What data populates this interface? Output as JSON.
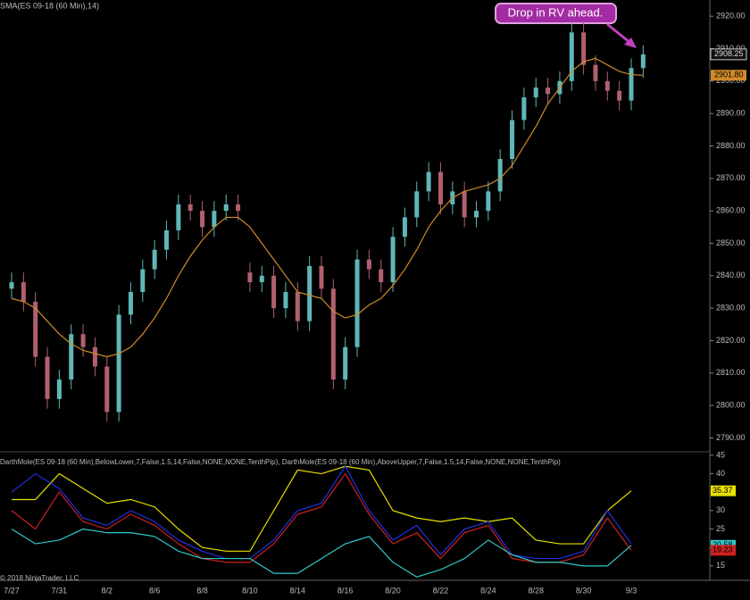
{
  "chart_data": [
    {
      "type": "candlestick",
      "title": "SMA(ES 09-18 (60 Min),14)",
      "annotation": "Drop in RV ahead.",
      "categories": [
        "7/27",
        "7/31",
        "8/2",
        "8/6",
        "8/8",
        "8/10",
        "8/14",
        "8/16",
        "8/20",
        "8/22",
        "8/24",
        "8/28",
        "8/30",
        "9/3"
      ],
      "up_color": "#5fb7b7",
      "down_color": "#b0606e",
      "sma_color": "#d08a2a",
      "ylim": [
        2786,
        2925
      ],
      "yticks": [
        {
          "value": 2790,
          "label": "2790.00"
        },
        {
          "value": 2800,
          "label": "2800.00"
        },
        {
          "value": 2810,
          "label": "2810.00"
        },
        {
          "value": 2820,
          "label": "2820.00"
        },
        {
          "value": 2830,
          "label": "2830.00"
        },
        {
          "value": 2840,
          "label": "2840.00"
        },
        {
          "value": 2850,
          "label": "2850.00"
        },
        {
          "value": 2860,
          "label": "2860.00"
        },
        {
          "value": 2870,
          "label": "2870.00"
        },
        {
          "value": 2880,
          "label": "2880.00"
        },
        {
          "value": 2890,
          "label": "2890.00"
        },
        {
          "value": 2900,
          "label": "2900.00"
        },
        {
          "value": 2910,
          "label": "2910.00"
        },
        {
          "value": 2920,
          "label": "2920.00"
        }
      ],
      "open": [
        2836,
        2838,
        2832,
        2815,
        2802,
        2808,
        2822,
        2818,
        2812,
        2798,
        2828,
        2835,
        2842,
        2848,
        2854,
        2862,
        2860,
        2855,
        2860,
        2862,
        2841,
        2838,
        2840,
        2830,
        2835,
        2826,
        2843,
        2836,
        2808,
        2818,
        2845,
        2842,
        2838,
        2852,
        2858,
        2866,
        2872,
        2862,
        2866,
        2858,
        2860,
        2866,
        2876,
        2888,
        2895,
        2898,
        2896,
        2900,
        2915,
        2905,
        2900,
        2897,
        2894,
        2904
      ],
      "high": [
        2841,
        2841,
        2835,
        2818,
        2811,
        2825,
        2825,
        2821,
        2815,
        2831,
        2838,
        2845,
        2851,
        2857,
        2865,
        2865,
        2863,
        2863,
        2865,
        2865,
        2844,
        2843,
        2843,
        2838,
        2838,
        2846,
        2846,
        2839,
        2821,
        2848,
        2848,
        2845,
        2855,
        2861,
        2869,
        2875,
        2875,
        2869,
        2869,
        2863,
        2869,
        2879,
        2891,
        2898,
        2901,
        2901,
        2903,
        2918,
        2918,
        2908,
        2903,
        2900,
        2907,
        2911
      ],
      "low": [
        2833,
        2829,
        2812,
        2799,
        2799,
        2805,
        2815,
        2809,
        2795,
        2795,
        2825,
        2832,
        2839,
        2845,
        2851,
        2857,
        2852,
        2852,
        2857,
        2857,
        2835,
        2835,
        2827,
        2827,
        2823,
        2823,
        2833,
        2805,
        2805,
        2815,
        2839,
        2835,
        2835,
        2849,
        2855,
        2863,
        2859,
        2859,
        2855,
        2855,
        2857,
        2863,
        2873,
        2885,
        2892,
        2893,
        2893,
        2897,
        2902,
        2897,
        2894,
        2891,
        2891,
        2901
      ],
      "close": [
        2838,
        2832,
        2815,
        2802,
        2808,
        2822,
        2818,
        2812,
        2798,
        2828,
        2835,
        2842,
        2848,
        2854,
        2862,
        2860,
        2855,
        2860,
        2862,
        2860,
        2838,
        2840,
        2830,
        2835,
        2826,
        2843,
        2836,
        2808,
        2818,
        2845,
        2842,
        2838,
        2852,
        2858,
        2866,
        2872,
        2862,
        2866,
        2858,
        2860,
        2866,
        2876,
        2888,
        2895,
        2898,
        2896,
        2900,
        2915,
        2905,
        2900,
        2897,
        2894,
        2904,
        2908.25
      ],
      "sma": [
        2833,
        2832,
        2830,
        2826,
        2822,
        2819,
        2817,
        2816,
        2815,
        2816,
        2818,
        2822,
        2827,
        2833,
        2840,
        2846,
        2851,
        2855,
        2858,
        2858,
        2855,
        2850,
        2845,
        2840,
        2835,
        2834,
        2833,
        2829,
        2827,
        2828,
        2831,
        2833,
        2837,
        2842,
        2848,
        2855,
        2860,
        2864,
        2866,
        2867,
        2868,
        2870,
        2874,
        2880,
        2886,
        2893,
        2898,
        2903,
        2906,
        2907,
        2905,
        2903,
        2902,
        2901.8
      ],
      "sma_last_label": "2901.80"
    },
    {
      "type": "line",
      "title": "DarthMole(ES 09-18 (60 Min),BelowLower,7,False,1.5,14,False,NONE,NONE,TenthPip), DarthMole(ES 09-18 (60 Min),AboveUpper,7,False,1.5,14,False,NONE,NONE,TenthPip)",
      "copyright": "© 2018 NinjaTrader, LLC",
      "ylim": [
        12.3,
        45.7
      ],
      "yticks": [
        15,
        20,
        25,
        30,
        35,
        40,
        45
      ],
      "series": [
        {
          "color": "#e8e000",
          "values": [
            33,
            33,
            40,
            36,
            32,
            33,
            31,
            25,
            20,
            19,
            19,
            30,
            41,
            40,
            42,
            41,
            30,
            28,
            27,
            28,
            27,
            28,
            22,
            21,
            21,
            30,
            35.37
          ]
        },
        {
          "color": "#d02020",
          "values": [
            30,
            25,
            35,
            27,
            25,
            29,
            26,
            21,
            17,
            16,
            16,
            21,
            29,
            31,
            40,
            29,
            21,
            24,
            17,
            24,
            26,
            17,
            16,
            16,
            18,
            28,
            19.23
          ]
        },
        {
          "color": "#2030e0",
          "values": [
            35,
            40,
            36,
            28,
            26,
            30,
            27,
            22,
            19,
            17,
            17,
            22,
            30,
            32,
            42,
            30,
            22,
            26,
            18,
            25,
            27,
            18,
            17,
            17,
            19,
            30,
            21
          ]
        },
        {
          "color": "#30c8c8",
          "values": [
            25,
            21,
            22,
            25,
            24,
            24,
            23,
            19,
            17,
            17,
            17,
            13,
            13,
            17,
            21,
            23,
            16,
            12,
            14,
            17,
            22,
            18,
            16,
            16,
            15,
            15,
            20.58
          ]
        }
      ]
    }
  ]
}
